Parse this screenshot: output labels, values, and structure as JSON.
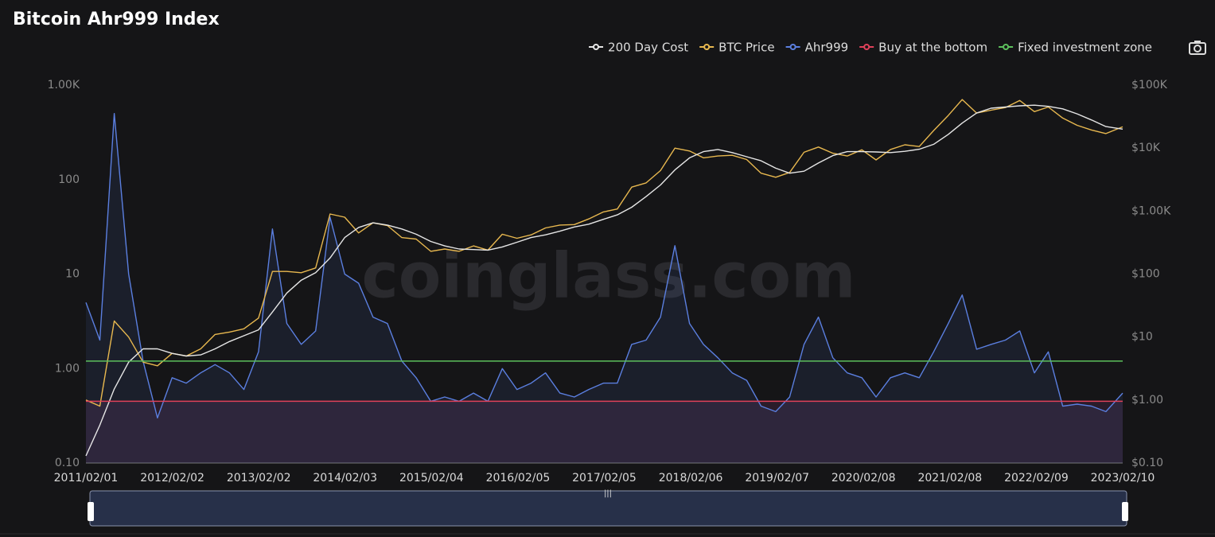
{
  "chart_data": {
    "type": "line",
    "title": "Bitcoin Ahr999 Index",
    "watermark": "coinglass.com",
    "log_scale": true,
    "x": [
      "2011/02/01",
      "2011/04/01",
      "2011/06/01",
      "2011/08/01",
      "2011/10/01",
      "2011/12/01",
      "2012/02/01",
      "2012/04/01",
      "2012/06/01",
      "2012/08/01",
      "2012/10/01",
      "2012/12/01",
      "2013/02/01",
      "2013/04/01",
      "2013/06/01",
      "2013/08/01",
      "2013/10/01",
      "2013/12/01",
      "2014/02/01",
      "2014/04/01",
      "2014/06/01",
      "2014/08/01",
      "2014/10/01",
      "2014/12/01",
      "2015/02/01",
      "2015/04/01",
      "2015/06/01",
      "2015/08/01",
      "2015/10/01",
      "2015/12/01",
      "2016/02/01",
      "2016/04/01",
      "2016/06/01",
      "2016/08/01",
      "2016/10/01",
      "2016/12/01",
      "2017/02/01",
      "2017/04/01",
      "2017/06/01",
      "2017/08/01",
      "2017/10/01",
      "2017/12/01",
      "2018/02/01",
      "2018/04/01",
      "2018/06/01",
      "2018/08/01",
      "2018/10/01",
      "2018/12/01",
      "2019/02/01",
      "2019/04/01",
      "2019/06/01",
      "2019/08/01",
      "2019/10/01",
      "2019/12/01",
      "2020/02/01",
      "2020/04/01",
      "2020/06/01",
      "2020/08/01",
      "2020/10/01",
      "2020/12/01",
      "2021/02/01",
      "2021/04/01",
      "2021/06/01",
      "2021/08/01",
      "2021/10/01",
      "2021/12/01",
      "2022/02/01",
      "2022/04/01",
      "2022/06/01",
      "2022/08/01",
      "2022/10/01",
      "2022/12/01",
      "2023/02/10"
    ],
    "xlim": [
      "2011/02/01",
      "2023/02/10"
    ],
    "xticks": [
      "2011/02/01",
      "2012/02/02",
      "2013/02/02",
      "2014/02/03",
      "2015/02/04",
      "2016/02/05",
      "2017/02/05",
      "2018/02/06",
      "2019/02/07",
      "2020/02/08",
      "2021/02/08",
      "2022/02/09",
      "2023/02/10"
    ],
    "ylim": [
      0.1,
      1000
    ],
    "yticks": [
      {
        "value": 0.1,
        "label": "0.10"
      },
      {
        "value": 1,
        "label": "1.00"
      },
      10,
      100,
      {
        "value": 1000,
        "label": "1.00K"
      }
    ],
    "y2lim": [
      0.1,
      100000
    ],
    "y2ticks": [
      {
        "value": 0.1,
        "label": "$0.10"
      },
      {
        "value": 1,
        "label": "$1.00"
      },
      {
        "value": 10,
        "label": "$10"
      },
      {
        "value": 100,
        "label": "$100"
      },
      {
        "value": 1000,
        "label": "$1.00K"
      },
      {
        "value": 10000,
        "label": "$10K"
      },
      {
        "value": 100000,
        "label": "$100K"
      }
    ],
    "series": [
      {
        "name": "200 Day Cost",
        "color": "#e6e6e6",
        "axis": "y2",
        "values": [
          0.13,
          0.4,
          1.5,
          4,
          6.5,
          6.5,
          5.5,
          5,
          5.2,
          6.5,
          8.5,
          10.5,
          13,
          25,
          50,
          80,
          105,
          180,
          380,
          550,
          650,
          600,
          520,
          430,
          330,
          280,
          250,
          245,
          240,
          270,
          320,
          380,
          420,
          480,
          560,
          620,
          740,
          870,
          1150,
          1700,
          2600,
          4500,
          7000,
          8800,
          9500,
          8500,
          7300,
          6300,
          4800,
          4000,
          4300,
          5800,
          7600,
          8800,
          8800,
          8700,
          8500,
          8900,
          9600,
          11500,
          16500,
          25000,
          36000,
          43000,
          45000,
          47000,
          48000,
          46000,
          42000,
          35000,
          28000,
          22000,
          20000
        ]
      },
      {
        "name": "BTC Price",
        "color": "#e8b84f",
        "axis": "y2",
        "values": [
          1.0,
          0.8,
          18,
          10,
          4,
          3.5,
          5.5,
          5,
          6.5,
          11,
          12,
          13.5,
          20,
          110,
          110,
          105,
          125,
          900,
          800,
          450,
          650,
          590,
          380,
          360,
          230,
          250,
          230,
          280,
          240,
          430,
          370,
          420,
          540,
          600,
          610,
          750,
          970,
          1080,
          2400,
          2800,
          4400,
          10000,
          9000,
          7000,
          7500,
          7700,
          6600,
          4000,
          3450,
          4100,
          8600,
          10400,
          8300,
          7500,
          9400,
          6500,
          9500,
          11300,
          10600,
          19000,
          33000,
          59000,
          36000,
          40000,
          44000,
          57000,
          38000,
          45000,
          30000,
          23000,
          19400,
          17000,
          21800
        ]
      },
      {
        "name": "Ahr999",
        "color": "#5b7fe0",
        "values": [
          5,
          2,
          500,
          10,
          1.2,
          0.3,
          0.8,
          0.7,
          0.9,
          1.1,
          0.9,
          0.6,
          1.5,
          30,
          3,
          1.8,
          2.5,
          40,
          10,
          8,
          3.5,
          3,
          1.2,
          0.8,
          0.45,
          0.5,
          0.45,
          0.55,
          0.45,
          1.0,
          0.6,
          0.7,
          0.9,
          0.55,
          0.5,
          0.6,
          0.7,
          0.7,
          1.8,
          2,
          3.5,
          20,
          3,
          1.8,
          1.3,
          0.9,
          0.75,
          0.4,
          0.35,
          0.5,
          1.8,
          3.5,
          1.3,
          0.9,
          0.8,
          0.5,
          0.8,
          0.9,
          0.8,
          1.5,
          3,
          6,
          1.6,
          1.8,
          2,
          2.5,
          0.9,
          1.5,
          0.4,
          0.42,
          0.4,
          0.35,
          0.55
        ]
      }
    ],
    "reference_lines": [
      {
        "name": "Buy at the bottom",
        "color": "#e0415a",
        "value": 0.45
      },
      {
        "name": "Fixed investment zone",
        "color": "#5cc05c",
        "value": 1.2
      }
    ]
  }
}
